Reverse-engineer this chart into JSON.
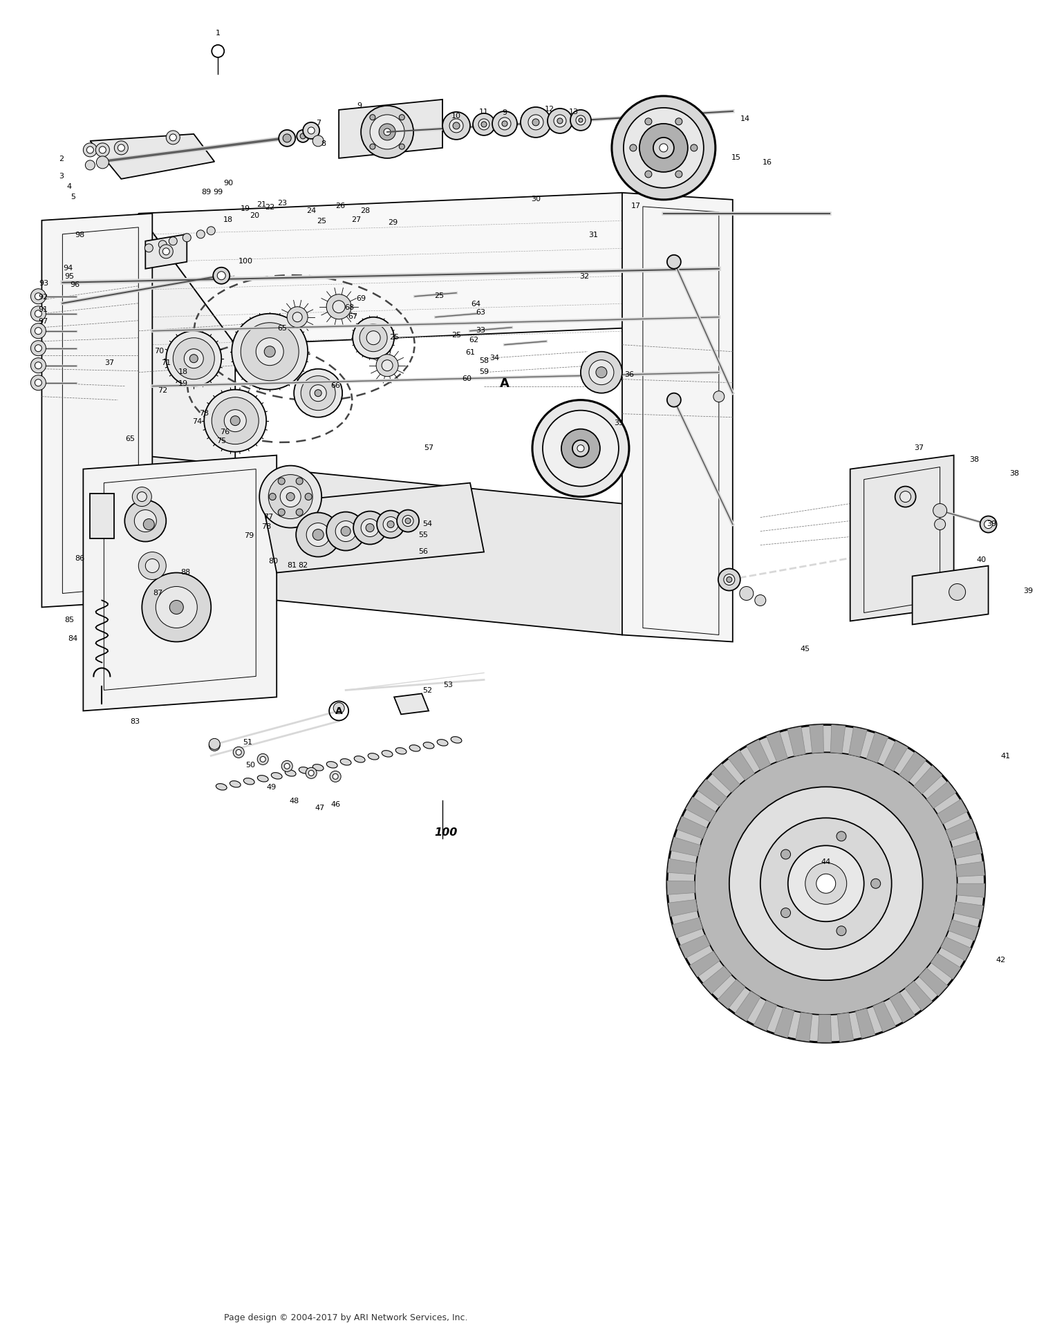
{
  "footer": "Page design © 2004-2017 by ARI Network Services, Inc.",
  "bg_color": "#ffffff",
  "line_color": "#000000",
  "fig_width": 15.0,
  "fig_height": 19.15,
  "dpi": 100,
  "footer_fontsize": 9,
  "label_fontsize": 8.0,
  "bold_label_fontsize": 10.5,
  "lw_main": 1.3,
  "lw_thin": 0.7,
  "lw_thick": 2.2,
  "lw_chain": 1.8,
  "gray_light": "#f2f2f2",
  "gray_mid": "#d8d8d8",
  "gray_dark": "#b0b0b0",
  "gray_fill": "#e8e8e8",
  "chain_color": "#444444",
  "line_gray": "#888888"
}
